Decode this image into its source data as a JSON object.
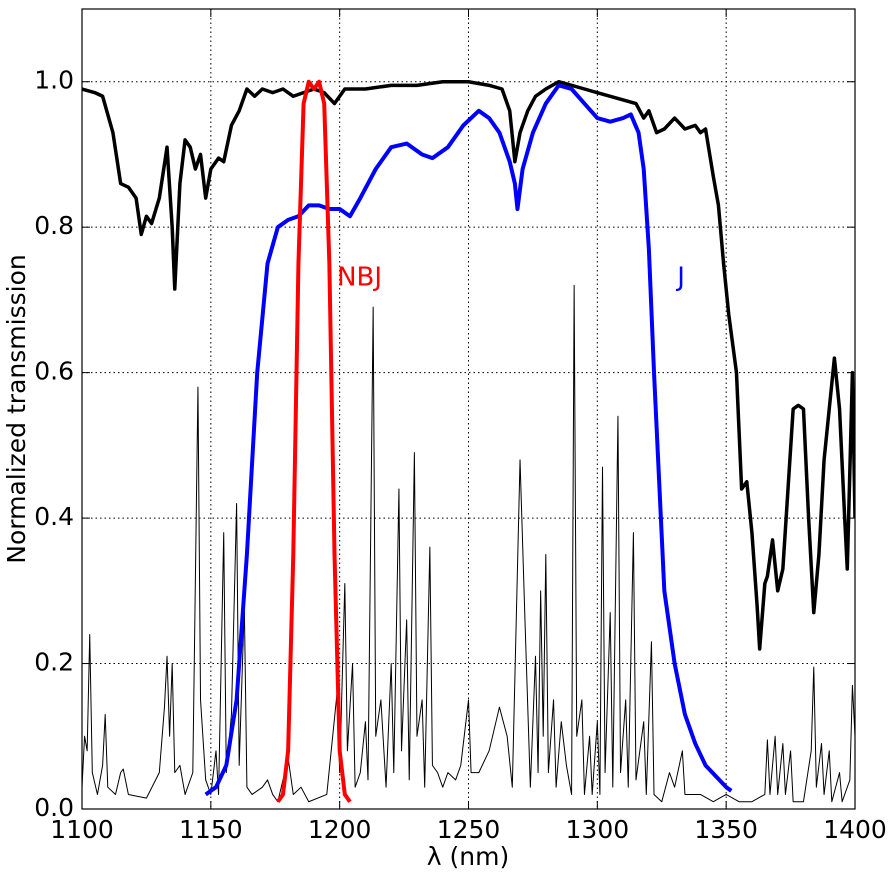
{
  "chart_data": {
    "type": "line",
    "xlabel": "λ (nm)",
    "ylabel": "Normalized transmission",
    "xlim": [
      1100,
      1400
    ],
    "ylim": [
      0,
      1.1
    ],
    "xticks": [
      1100,
      1150,
      1200,
      1250,
      1300,
      1350,
      1400
    ],
    "yticks": [
      {
        "value": 0,
        "label": "0.0"
      },
      {
        "value": 0.2,
        "label": "0.2"
      },
      {
        "value": 0.4,
        "label": "0.4"
      },
      {
        "value": 0.6,
        "label": "0.6"
      },
      {
        "value": 0.8,
        "label": "0.8"
      },
      {
        "value": 1,
        "label": "1.0"
      }
    ],
    "grid": true,
    "series": [
      {
        "color": "#000000",
        "line_width": 1,
        "x": [
          1100,
          1101,
          1102,
          1103,
          1104,
          1106,
          1108,
          1109,
          1110,
          1113,
          1115,
          1116,
          1118,
          1125,
          1130,
          1132,
          1133,
          1134,
          1135,
          1136,
          1138,
          1140,
          1143,
          1145,
          1146,
          1148,
          1150,
          1152,
          1153,
          1155,
          1156,
          1158,
          1160,
          1161,
          1163,
          1164,
          1166,
          1170,
          1172,
          1174,
          1176,
          1180,
          1182,
          1185,
          1188,
          1195,
          1199,
          1200,
          1202,
          1203,
          1205,
          1206,
          1208,
          1210,
          1211,
          1213,
          1214,
          1216,
          1218,
          1220,
          1221,
          1223,
          1224,
          1226,
          1227,
          1229,
          1230,
          1232,
          1233,
          1235,
          1236,
          1238,
          1240,
          1242,
          1245,
          1247,
          1250,
          1251,
          1254,
          1258,
          1262,
          1265,
          1267,
          1270,
          1272,
          1274,
          1276,
          1277,
          1278,
          1279,
          1280,
          1281,
          1283,
          1284,
          1286,
          1288,
          1290,
          1291,
          1292,
          1294,
          1295,
          1297,
          1298,
          1300,
          1301,
          1302,
          1303,
          1305,
          1306,
          1308,
          1309,
          1311,
          1312,
          1314,
          1315,
          1318,
          1319,
          1321,
          1322,
          1325,
          1328,
          1330,
          1333,
          1334,
          1340,
          1345,
          1350,
          1355,
          1360,
          1365,
          1366,
          1367,
          1369,
          1370,
          1372,
          1373,
          1375,
          1376,
          1380,
          1383,
          1384,
          1385,
          1387,
          1388,
          1390,
          1391,
          1394,
          1395,
          1398,
          1399,
          1400
        ],
        "values": [
          0.03,
          0.1,
          0.08,
          0.24,
          0.05,
          0.02,
          0.06,
          0.13,
          0.03,
          0.02,
          0.05,
          0.055,
          0.02,
          0.015,
          0.05,
          0.14,
          0.21,
          0.1,
          0.2,
          0.05,
          0.06,
          0.02,
          0.05,
          0.58,
          0.15,
          0.04,
          0.02,
          0.08,
          0.02,
          0.38,
          0.05,
          0.13,
          0.42,
          0.06,
          0.28,
          0.03,
          0.02,
          0.03,
          0.04,
          0.02,
          0.01,
          0.07,
          0.02,
          0.03,
          0.01,
          0.02,
          0.16,
          0.05,
          0.31,
          0.08,
          0.2,
          0.03,
          0.05,
          0.12,
          0.04,
          0.69,
          0.1,
          0.15,
          0.03,
          0.2,
          0.05,
          0.44,
          0.08,
          0.26,
          0.04,
          0.49,
          0.1,
          0.15,
          0.03,
          0.36,
          0.06,
          0.05,
          0.03,
          0.05,
          0.04,
          0.06,
          0.15,
          0.05,
          0.05,
          0.08,
          0.14,
          0.1,
          0.03,
          0.48,
          0.25,
          0.03,
          0.21,
          0.05,
          0.3,
          0.1,
          0.35,
          0.05,
          0.15,
          0.03,
          0.12,
          0.06,
          0.02,
          0.72,
          0.1,
          0.15,
          0.02,
          0.1,
          0.02,
          0.12,
          0.02,
          0.47,
          0.05,
          0.27,
          0.03,
          0.54,
          0.05,
          0.15,
          0.03,
          0.38,
          0.04,
          0.12,
          0.02,
          0.23,
          0.02,
          0.01,
          0.05,
          0.03,
          0.08,
          0.02,
          0.02,
          0.01,
          0.02,
          0.01,
          0.01,
          0.02,
          0.095,
          0.02,
          0.1,
          0.02,
          0.09,
          0.02,
          0.08,
          0.01,
          0.01,
          0.08,
          0.195,
          0.03,
          0.09,
          0.02,
          0.08,
          0.01,
          0.05,
          0.01,
          0.04,
          0.17,
          0.1
        ]
      },
      {
        "color": "#000000",
        "line_width": 3.5,
        "x": [
          1100,
          1105,
          1108,
          1112,
          1115,
          1118,
          1121,
          1123,
          1125,
          1127,
          1130,
          1133,
          1135,
          1136,
          1138,
          1140,
          1142,
          1144,
          1146,
          1148,
          1150,
          1153,
          1155,
          1158,
          1161,
          1164,
          1167,
          1170,
          1174,
          1178,
          1182,
          1186,
          1190,
          1194,
          1198,
          1202,
          1210,
          1220,
          1230,
          1240,
          1250,
          1258,
          1263,
          1266,
          1268,
          1270,
          1273,
          1276,
          1280,
          1285,
          1290,
          1295,
          1300,
          1305,
          1310,
          1315,
          1318,
          1320,
          1323,
          1326,
          1330,
          1334,
          1338,
          1340,
          1342,
          1345,
          1347,
          1349,
          1351,
          1354,
          1356,
          1358,
          1360,
          1362,
          1363,
          1365,
          1366,
          1368,
          1370,
          1372,
          1374,
          1376,
          1378,
          1380,
          1382,
          1384,
          1386,
          1388,
          1390,
          1392,
          1394,
          1396,
          1397,
          1399,
          1400
        ],
        "values": [
          0.99,
          0.985,
          0.98,
          0.93,
          0.86,
          0.855,
          0.84,
          0.79,
          0.815,
          0.805,
          0.84,
          0.91,
          0.8,
          0.715,
          0.86,
          0.92,
          0.91,
          0.88,
          0.9,
          0.84,
          0.88,
          0.895,
          0.89,
          0.94,
          0.96,
          0.99,
          0.98,
          0.99,
          0.985,
          0.99,
          0.98,
          0.985,
          0.99,
          0.985,
          0.97,
          0.99,
          0.99,
          0.995,
          0.995,
          1.0,
          1.0,
          0.995,
          0.99,
          0.96,
          0.89,
          0.93,
          0.96,
          0.98,
          0.99,
          1.0,
          0.995,
          0.99,
          0.985,
          0.98,
          0.975,
          0.97,
          0.95,
          0.96,
          0.93,
          0.935,
          0.95,
          0.935,
          0.94,
          0.93,
          0.935,
          0.87,
          0.83,
          0.75,
          0.68,
          0.6,
          0.44,
          0.45,
          0.38,
          0.28,
          0.22,
          0.31,
          0.32,
          0.37,
          0.3,
          0.33,
          0.44,
          0.55,
          0.555,
          0.55,
          0.4,
          0.27,
          0.35,
          0.48,
          0.55,
          0.62,
          0.55,
          0.4,
          0.33,
          0.6,
          0.4
        ]
      },
      {
        "name": "J",
        "color": "#0000ff",
        "line_width": 4,
        "x": [
          1148,
          1152,
          1156,
          1160,
          1164,
          1168,
          1172,
          1176,
          1180,
          1184,
          1188,
          1192,
          1196,
          1200,
          1204,
          1208,
          1214,
          1220,
          1226,
          1232,
          1236,
          1242,
          1248,
          1254,
          1258,
          1262,
          1266,
          1268,
          1269,
          1271,
          1275,
          1280,
          1285,
          1290,
          1295,
          1300,
          1305,
          1310,
          1313,
          1316,
          1318,
          1320,
          1322,
          1324,
          1326,
          1330,
          1334,
          1338,
          1342,
          1346,
          1350,
          1352
        ],
        "values": [
          0.02,
          0.03,
          0.06,
          0.15,
          0.35,
          0.6,
          0.75,
          0.8,
          0.81,
          0.815,
          0.83,
          0.83,
          0.825,
          0.825,
          0.815,
          0.84,
          0.88,
          0.91,
          0.915,
          0.9,
          0.895,
          0.91,
          0.94,
          0.96,
          0.95,
          0.93,
          0.89,
          0.86,
          0.825,
          0.88,
          0.93,
          0.97,
          0.995,
          0.99,
          0.97,
          0.95,
          0.945,
          0.95,
          0.955,
          0.93,
          0.88,
          0.77,
          0.6,
          0.45,
          0.3,
          0.2,
          0.13,
          0.09,
          0.06,
          0.045,
          0.03,
          0.025
        ],
        "label_x": 1331,
        "label_y": 0.73
      },
      {
        "name": "NBJ",
        "color": "#ff0000",
        "line_width": 4,
        "x": [
          1176,
          1178,
          1180,
          1182,
          1184,
          1186,
          1188,
          1190,
          1192,
          1194,
          1196,
          1198,
          1200,
          1202,
          1204
        ],
        "values": [
          0.01,
          0.02,
          0.08,
          0.35,
          0.75,
          0.97,
          1.0,
          0.99,
          1.0,
          0.97,
          0.75,
          0.35,
          0.08,
          0.02,
          0.01
        ],
        "label_x": 1199,
        "label_y": 0.73
      }
    ]
  }
}
